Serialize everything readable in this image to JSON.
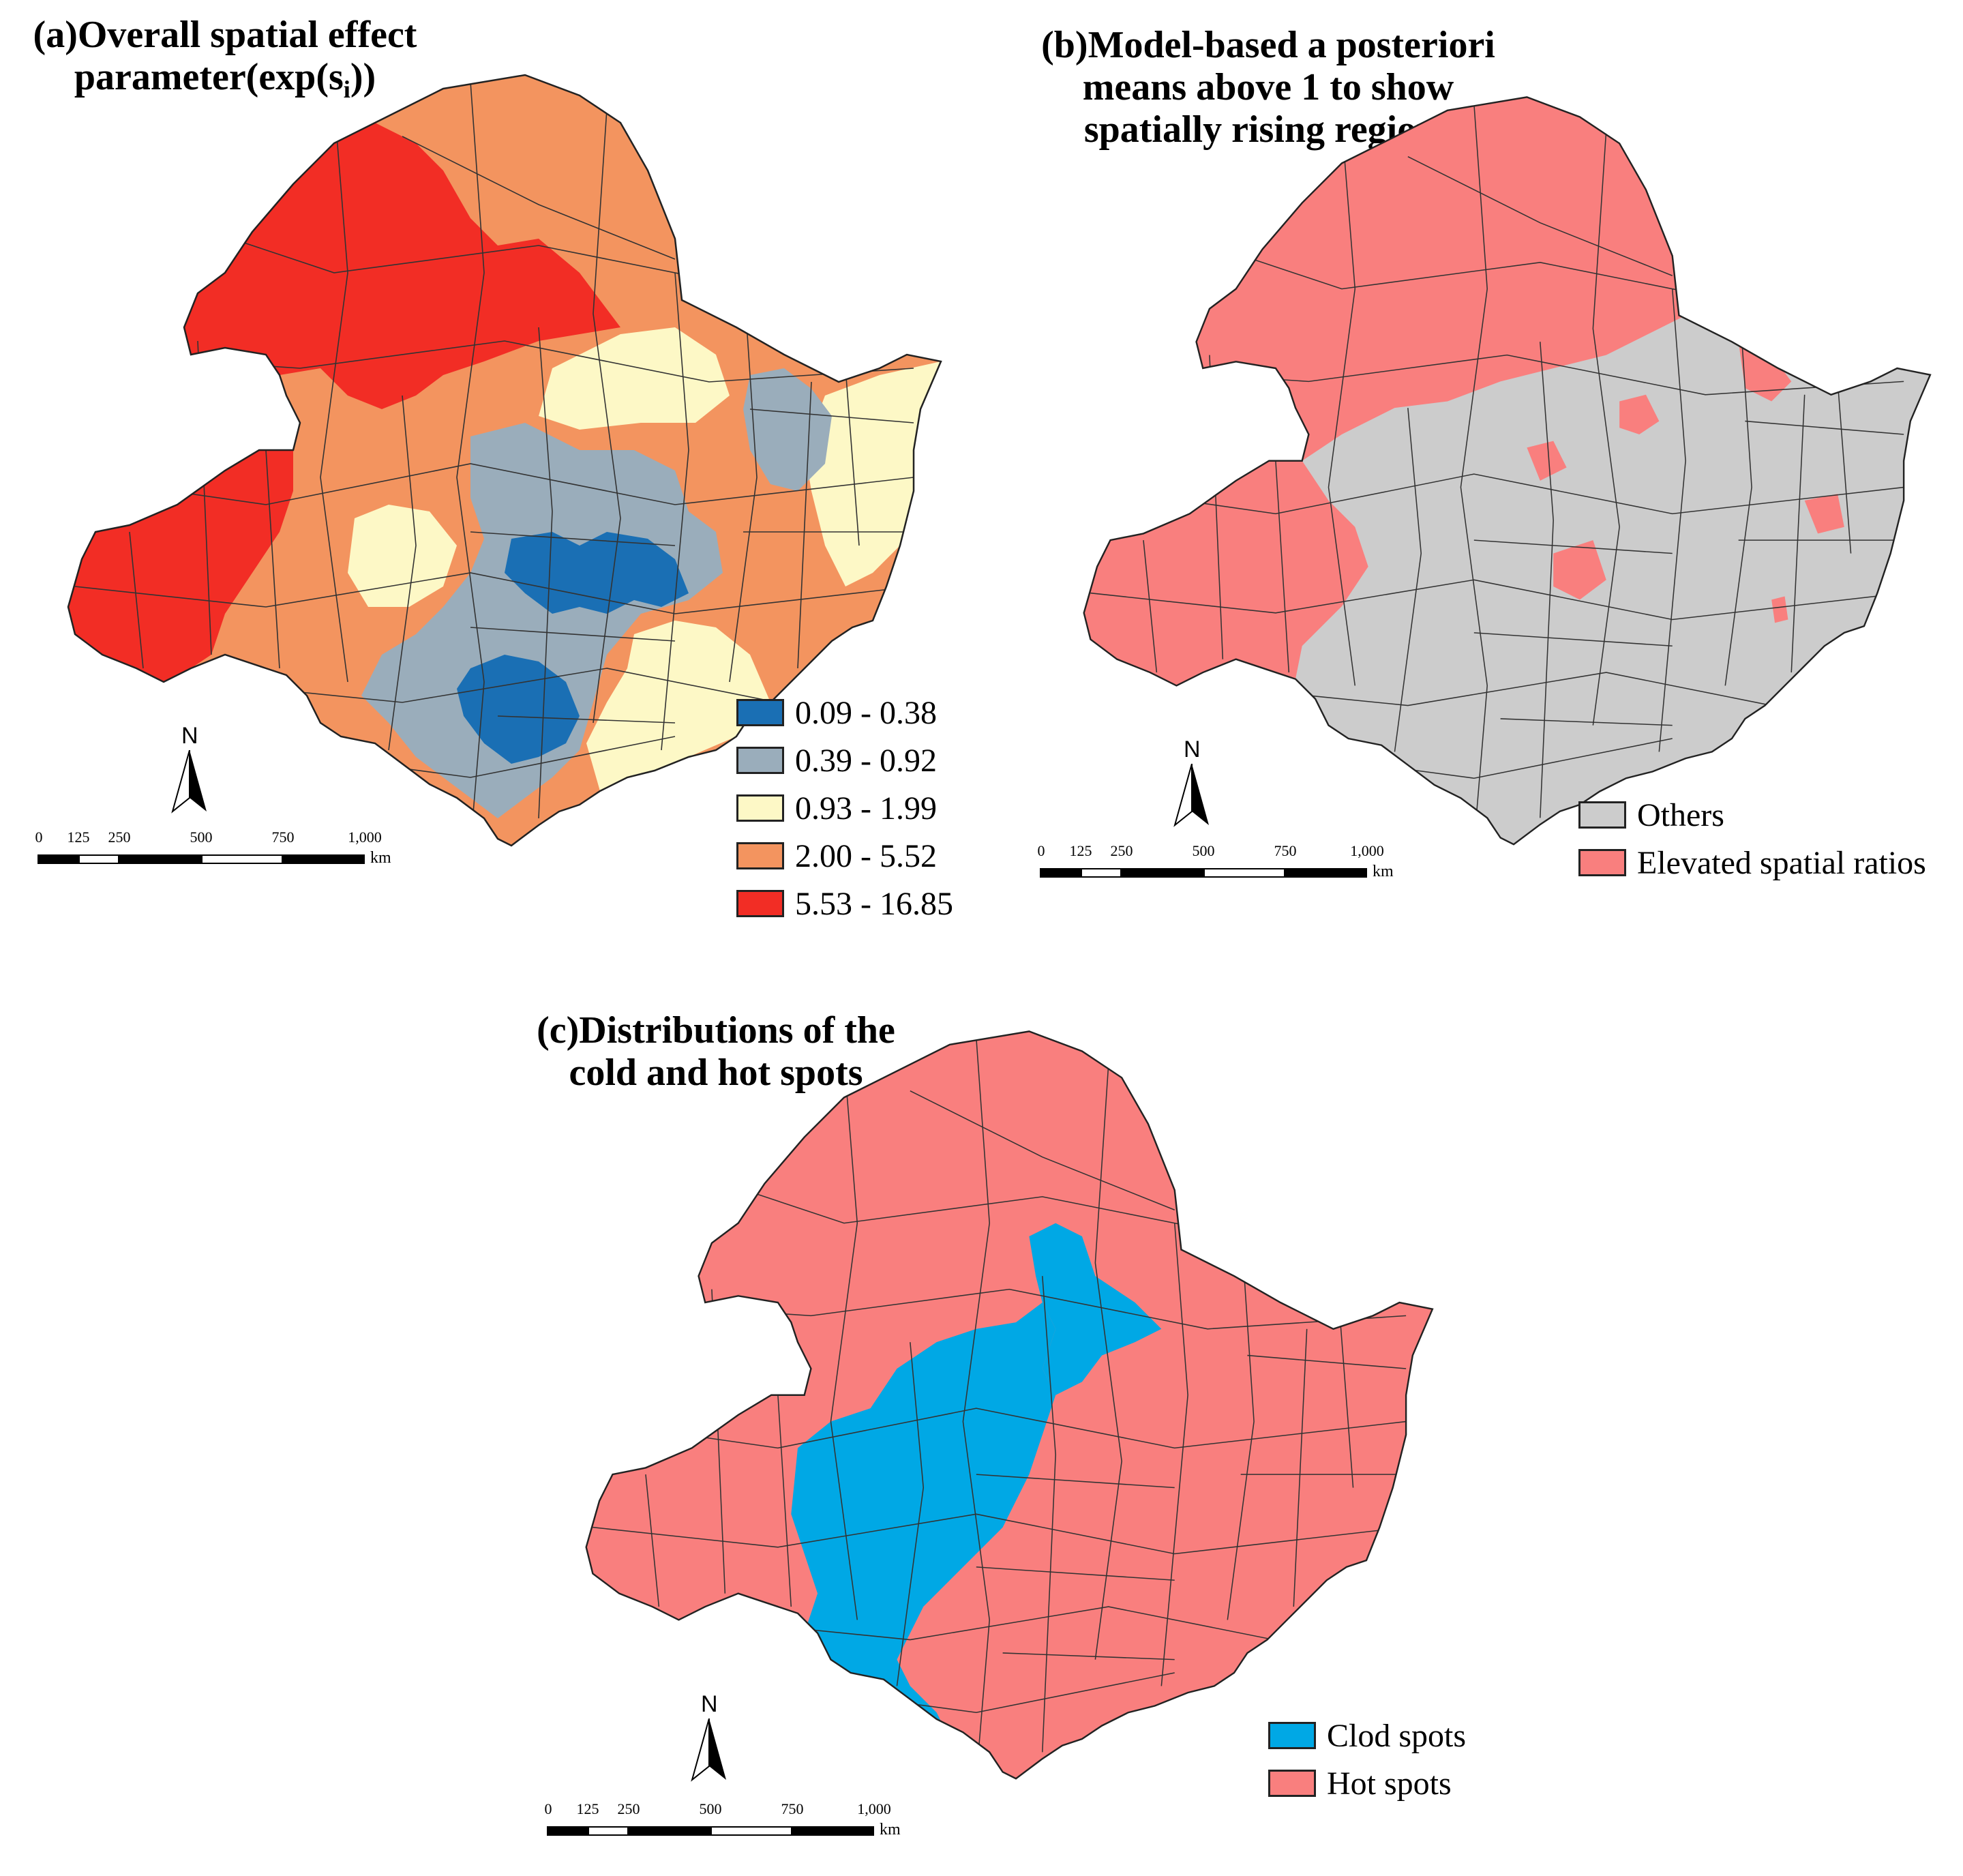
{
  "panels": {
    "a": {
      "title_line1": "(a)Overall spatial effect",
      "title_line2_prefix": "parameter(exp(s",
      "title_line2_sub": "i",
      "title_line2_suffix": "))",
      "legend": [
        {
          "label": "0.09 - 0.38",
          "color": "#1a6fb4"
        },
        {
          "label": "0.39 - 0.92",
          "color": "#9aadbb"
        },
        {
          "label": "0.93 - 1.99",
          "color": "#fdf8c6"
        },
        {
          "label": "2.00 - 5.52",
          "color": "#f3945f"
        },
        {
          "label": "5.53 - 16.85",
          "color": "#f22d25"
        }
      ]
    },
    "b": {
      "title_line1": "(b)Model-based a posteriori",
      "title_line2": "means above 1 to show",
      "title_line3": "spatially rising regions",
      "legend": [
        {
          "label": "Others",
          "color": "#cccccc"
        },
        {
          "label": "Elevated spatial ratios",
          "color": "#f97f7e"
        }
      ]
    },
    "c": {
      "title_line1": "(c)Distributions of the",
      "title_line2": "cold and hot spots",
      "legend": [
        {
          "label": "Clod spots",
          "color": "#00a8e5"
        },
        {
          "label": "Hot spots",
          "color": "#f97f7e"
        }
      ]
    }
  },
  "north_label": "N",
  "scale": {
    "ticks": [
      "0",
      "125",
      "250",
      "500",
      "750",
      "1,000"
    ],
    "unit": "km"
  },
  "colors": {
    "outline": "#333333",
    "hot": "#f97f7e",
    "cold": "#00a8e5",
    "others": "#cccccc"
  }
}
